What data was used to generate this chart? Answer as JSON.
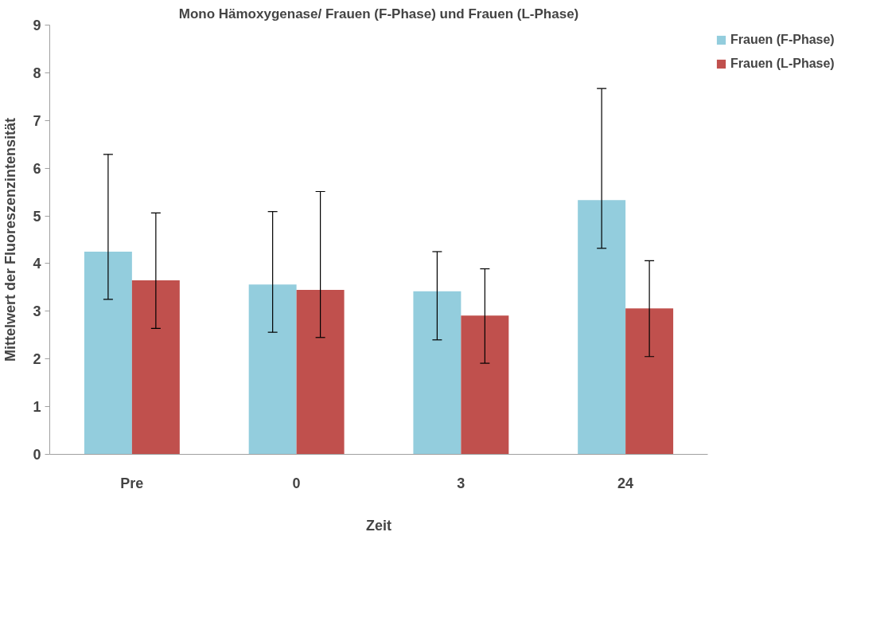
{
  "chart_data": {
    "type": "bar",
    "title": "Mono Hämoxygenase/ Frauen (F-Phase) und Frauen (L-Phase)",
    "xlabel": "Zeit",
    "ylabel": "Mittelwert der Fluoreszenzintensität",
    "categories": [
      "Pre",
      "0",
      "3",
      "24"
    ],
    "series": [
      {
        "name": "Frauen (F-Phase)",
        "color": "#93cddd",
        "values": [
          4.25,
          3.56,
          3.42,
          5.33
        ],
        "errors": [
          [
            3.25,
            6.29
          ],
          [
            2.56,
            5.09
          ],
          [
            2.4,
            4.25
          ],
          [
            4.32,
            7.67
          ]
        ]
      },
      {
        "name": "Frauen (L-Phase)",
        "color": "#c0504d",
        "values": [
          3.65,
          3.45,
          2.91,
          3.06
        ],
        "errors": [
          [
            2.64,
            5.06
          ],
          [
            2.45,
            5.51
          ],
          [
            1.91,
            3.89
          ],
          [
            2.05,
            4.06
          ]
        ]
      }
    ],
    "ylim": [
      0,
      9
    ],
    "yticks": [
      0,
      1,
      2,
      3,
      4,
      5,
      6,
      7,
      8,
      9
    ],
    "grid": false,
    "legend": "top right"
  }
}
